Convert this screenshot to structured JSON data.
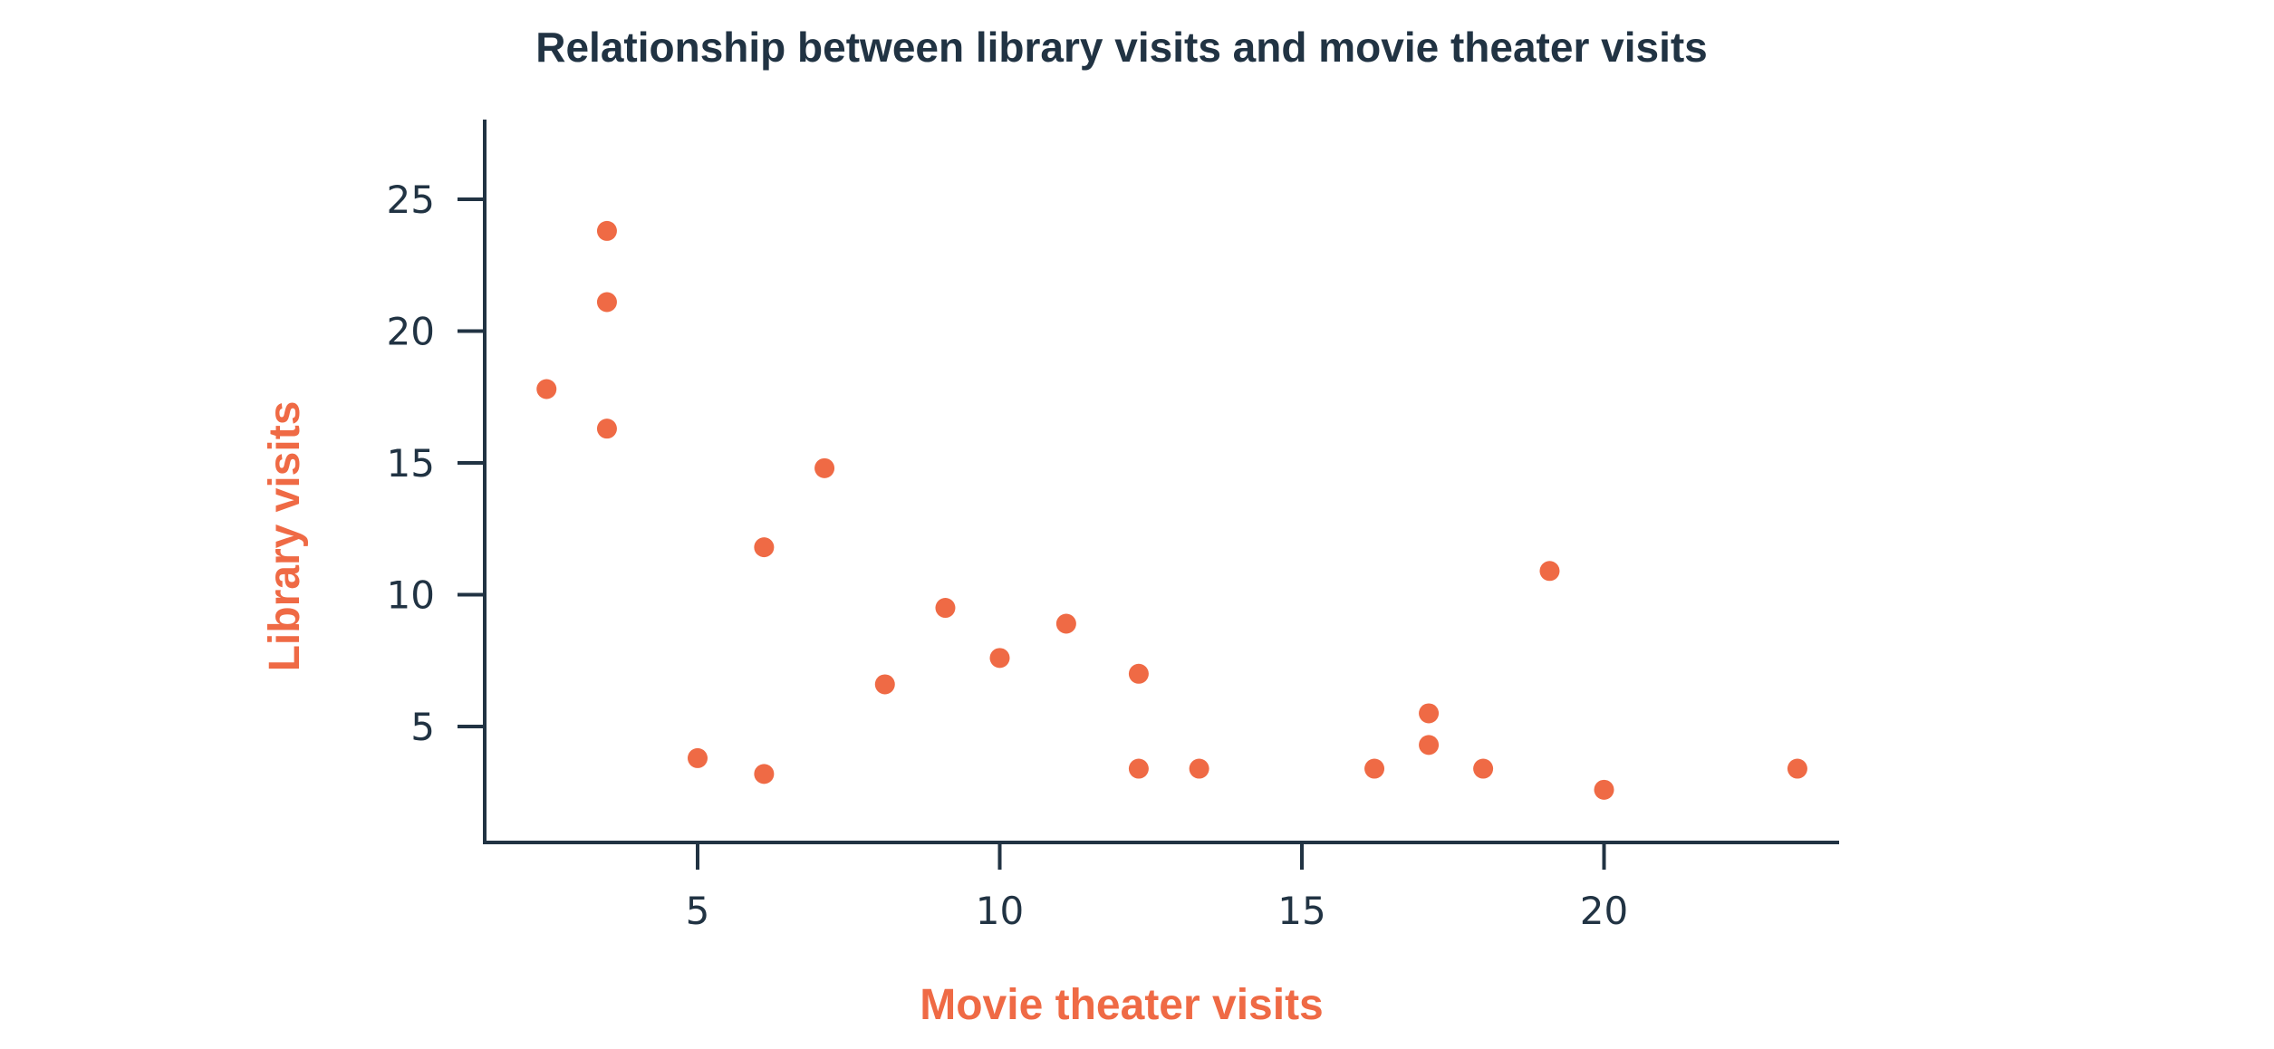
{
  "chart_data": {
    "type": "scatter",
    "title": "Relationship between library visits and movie theater visits",
    "xlabel": "Movie theater visits",
    "ylabel": "Library visits",
    "xlim": [
      1.5,
      24
    ],
    "ylim": [
      0.5,
      28
    ],
    "xticks": [
      5,
      10,
      15,
      20
    ],
    "yticks": [
      5,
      10,
      15,
      20,
      25
    ],
    "grid": false,
    "colors": {
      "points": "#ef6a45",
      "axis_labels": "#ef6a45",
      "axes": "#213343",
      "text": "#213343"
    },
    "series": [
      {
        "points": [
          {
            "x": 2.5,
            "y": 17.8
          },
          {
            "x": 3.5,
            "y": 23.8
          },
          {
            "x": 3.5,
            "y": 21.1
          },
          {
            "x": 3.5,
            "y": 16.3
          },
          {
            "x": 5.0,
            "y": 3.8
          },
          {
            "x": 6.1,
            "y": 11.8
          },
          {
            "x": 6.1,
            "y": 3.2
          },
          {
            "x": 7.1,
            "y": 14.8
          },
          {
            "x": 8.1,
            "y": 6.6
          },
          {
            "x": 9.1,
            "y": 9.5
          },
          {
            "x": 10.0,
            "y": 7.6
          },
          {
            "x": 11.1,
            "y": 8.9
          },
          {
            "x": 12.3,
            "y": 7.0
          },
          {
            "x": 12.3,
            "y": 3.4
          },
          {
            "x": 13.3,
            "y": 3.4
          },
          {
            "x": 16.2,
            "y": 3.4
          },
          {
            "x": 17.1,
            "y": 5.5
          },
          {
            "x": 17.1,
            "y": 4.3
          },
          {
            "x": 18.0,
            "y": 3.4
          },
          {
            "x": 19.1,
            "y": 10.9
          },
          {
            "x": 20.0,
            "y": 2.6
          },
          {
            "x": 23.2,
            "y": 3.4
          }
        ]
      }
    ]
  }
}
